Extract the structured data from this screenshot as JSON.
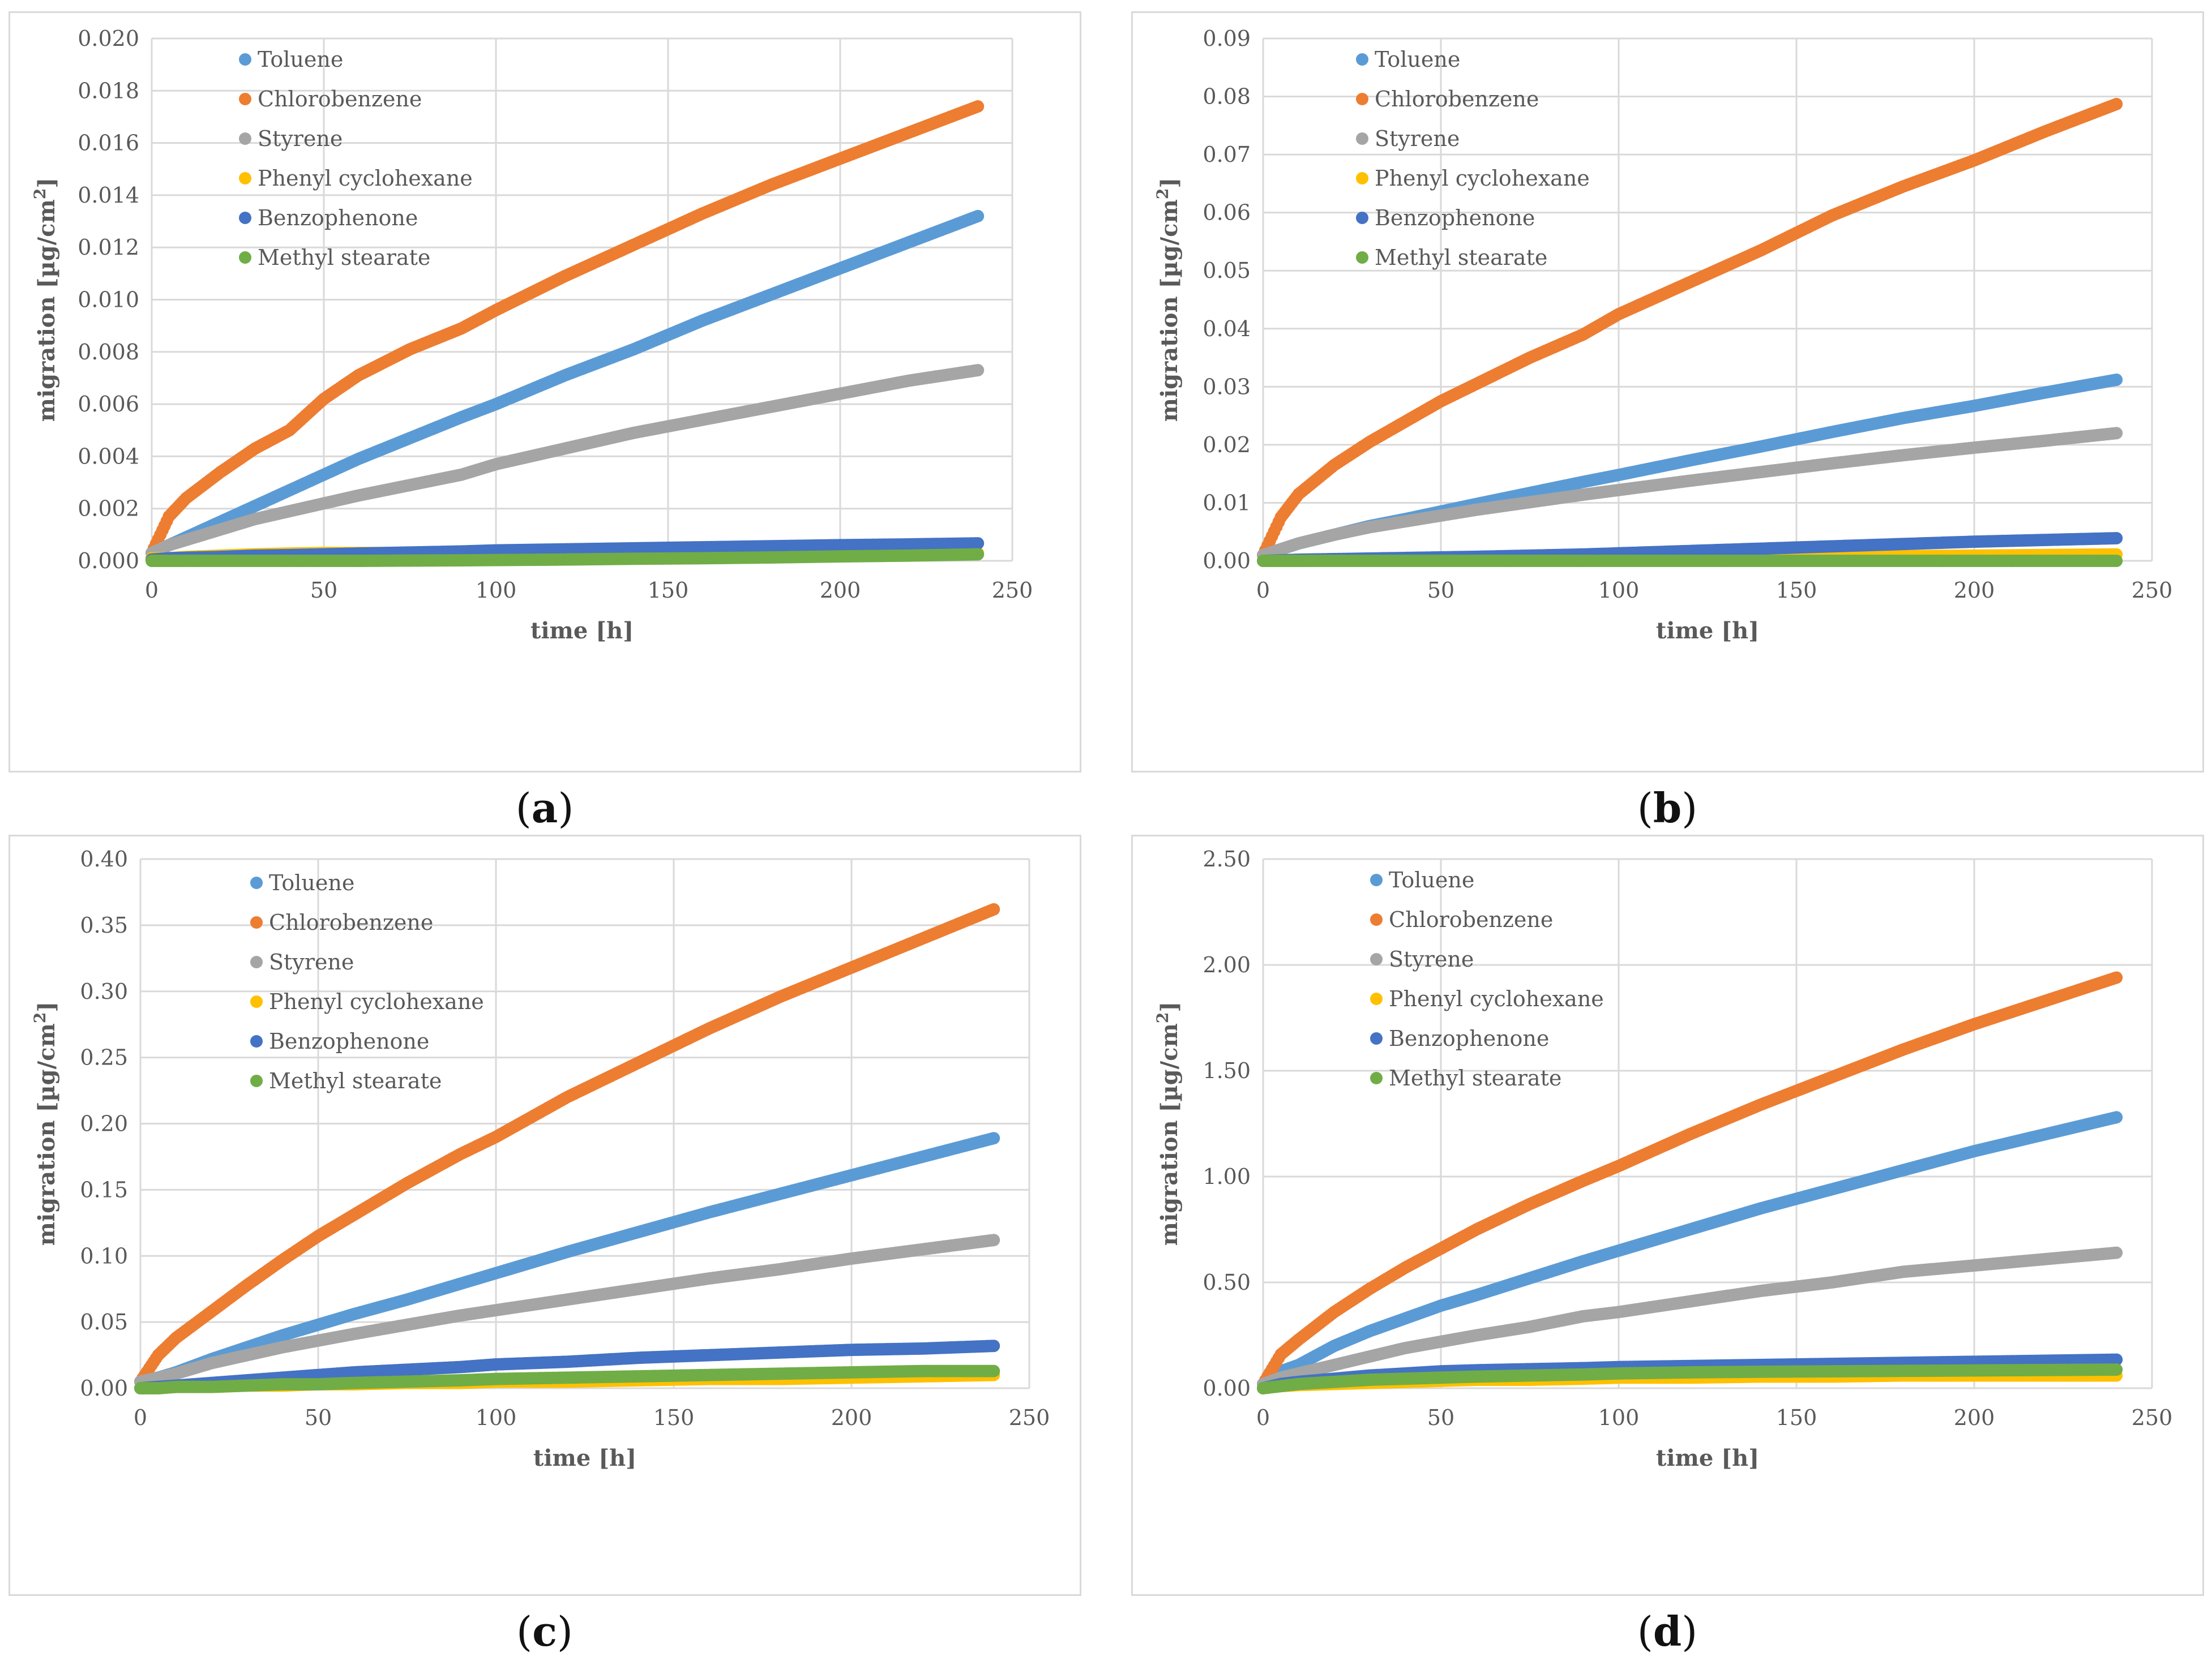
{
  "colors": {
    "toluene": "#5b9bd5",
    "chlorobenzene": "#ed7d31",
    "styrene": "#a5a5a5",
    "phenyl_cyclohexane": "#ffc000",
    "benzophenone": "#4472c4",
    "methyl_stearate": "#70ad47",
    "grid": "#d9d9d9",
    "axis_text": "#595959"
  },
  "chart_data": [
    {
      "id": "a",
      "caption": "a",
      "type": "scatter",
      "xlabel": "time [h]",
      "ylabel_main": "migration [µg/cm",
      "ylabel_sup": "2",
      "ylabel_end": "]",
      "xlim": [
        0,
        250
      ],
      "ylim": [
        0,
        0.02
      ],
      "x_ticks": [
        "0",
        "50",
        "100",
        "150",
        "200",
        "250"
      ],
      "y_ticks": [
        "0.000",
        "0.002",
        "0.004",
        "0.006",
        "0.008",
        "0.010",
        "0.012",
        "0.014",
        "0.016",
        "0.018",
        "0.020"
      ],
      "x": [
        0,
        5,
        10,
        20,
        30,
        40,
        50,
        60,
        75,
        90,
        100,
        120,
        140,
        160,
        180,
        200,
        220,
        240
      ],
      "series": [
        {
          "name": "Toluene",
          "key": "toluene",
          "values": [
            0.0003,
            0.0006,
            0.0009,
            0.0015,
            0.0021,
            0.0027,
            0.0033,
            0.0039,
            0.0047,
            0.0055,
            0.006,
            0.0071,
            0.0081,
            0.0092,
            0.0102,
            0.0112,
            0.0122,
            0.0132
          ]
        },
        {
          "name": "Chlorobenzene",
          "key": "chlorobenzene",
          "values": [
            0.0003,
            0.0017,
            0.0024,
            0.0034,
            0.0043,
            0.005,
            0.0062,
            0.0071,
            0.0081,
            0.0089,
            0.0096,
            0.0109,
            0.0121,
            0.0133,
            0.0144,
            0.0154,
            0.0164,
            0.0174
          ]
        },
        {
          "name": "Styrene",
          "key": "styrene",
          "values": [
            0.0003,
            0.0006,
            0.0008,
            0.0012,
            0.0016,
            0.0019,
            0.0022,
            0.0025,
            0.0029,
            0.0033,
            0.0037,
            0.0043,
            0.0049,
            0.0054,
            0.0059,
            0.0064,
            0.0069,
            0.0073
          ]
        },
        {
          "name": "Phenyl cyclohexane",
          "key": "phenyl_cyclohexane",
          "values": [
            0.0001,
            0.0001,
            0.00015,
            0.0002,
            0.00025,
            0.00028,
            0.0003,
            0.0003,
            0.0003,
            0.0003,
            0.0003,
            0.0003,
            0.0003,
            0.0003,
            0.0003,
            0.0003,
            0.0003,
            0.0003
          ]
        },
        {
          "name": "Benzophenone",
          "key": "benzophenone",
          "values": [
            5e-05,
            0.0001,
            0.00012,
            0.00015,
            0.0002,
            0.00022,
            0.00025,
            0.00028,
            0.00032,
            0.00036,
            0.0004,
            0.00044,
            0.00048,
            0.00052,
            0.00056,
            0.0006,
            0.00063,
            0.00067
          ]
        },
        {
          "name": "Methyl stearate",
          "key": "methyl_stearate",
          "values": [
            0,
            0,
            0,
            0,
            0,
            0,
            0,
            0,
            1e-05,
            2e-05,
            3e-05,
            5e-05,
            8e-05,
            0.0001,
            0.00013,
            0.00017,
            0.0002,
            0.00025
          ]
        }
      ]
    },
    {
      "id": "b",
      "caption": "b",
      "type": "scatter",
      "xlabel": "time [h]",
      "ylabel_main": "migration [µg/cm",
      "ylabel_sup": "2",
      "ylabel_end": "]",
      "xlim": [
        0,
        250
      ],
      "ylim": [
        0,
        0.09
      ],
      "x_ticks": [
        "0",
        "50",
        "100",
        "150",
        "200",
        "250"
      ],
      "y_ticks": [
        "0.00",
        "0.01",
        "0.02",
        "0.03",
        "0.04",
        "0.05",
        "0.06",
        "0.07",
        "0.08",
        "0.09"
      ],
      "x": [
        0,
        5,
        10,
        20,
        30,
        40,
        50,
        60,
        75,
        90,
        100,
        120,
        140,
        160,
        180,
        200,
        220,
        240
      ],
      "series": [
        {
          "name": "Toluene",
          "key": "toluene",
          "values": [
            0.001,
            0.002,
            0.003,
            0.0045,
            0.006,
            0.0072,
            0.0085,
            0.0098,
            0.0117,
            0.0136,
            0.0148,
            0.0173,
            0.0197,
            0.0222,
            0.0246,
            0.0267,
            0.029,
            0.0312
          ]
        },
        {
          "name": "Chlorobenzene",
          "key": "chlorobenzene",
          "values": [
            0.001,
            0.0075,
            0.0115,
            0.0165,
            0.0205,
            0.024,
            0.0275,
            0.0305,
            0.035,
            0.039,
            0.0425,
            0.048,
            0.0535,
            0.0595,
            0.0645,
            0.069,
            0.074,
            0.0787
          ]
        },
        {
          "name": "Styrene",
          "key": "styrene",
          "values": [
            0.001,
            0.002,
            0.003,
            0.0045,
            0.0058,
            0.0068,
            0.0078,
            0.0088,
            0.0101,
            0.0114,
            0.0122,
            0.0138,
            0.0153,
            0.0168,
            0.0182,
            0.0195,
            0.0207,
            0.022
          ]
        },
        {
          "name": "Phenyl cyclohexane",
          "key": "phenyl_cyclohexane",
          "values": [
            0,
            0,
            0,
            0.0001,
            0.0001,
            0.0002,
            0.0002,
            0.0003,
            0.0003,
            0.0004,
            0.0004,
            0.0005,
            0.0006,
            0.0007,
            0.0008,
            0.0009,
            0.001,
            0.0011
          ]
        },
        {
          "name": "Benzophenone",
          "key": "benzophenone",
          "values": [
            0,
            0.0001,
            0.0002,
            0.0003,
            0.0004,
            0.0005,
            0.0006,
            0.0007,
            0.0009,
            0.0011,
            0.0013,
            0.0017,
            0.0021,
            0.0025,
            0.0029,
            0.0033,
            0.0036,
            0.0039
          ]
        },
        {
          "name": "Methyl stearate",
          "key": "methyl_stearate",
          "values": [
            0,
            0,
            0,
            0,
            0,
            0,
            0,
            0,
            0,
            0,
            0,
            0,
            0,
            0,
            0,
            0,
            0,
            0
          ]
        }
      ]
    },
    {
      "id": "c",
      "caption": "c",
      "type": "scatter",
      "xlabel": "time [h]",
      "ylabel_main": "migration [µg/cm",
      "ylabel_sup": "2",
      "ylabel_end": "]",
      "xlim": [
        0,
        250
      ],
      "ylim": [
        0,
        0.4
      ],
      "x_ticks": [
        "0",
        "50",
        "100",
        "150",
        "200",
        "250"
      ],
      "y_ticks": [
        "0.00",
        "0.05",
        "0.10",
        "0.15",
        "0.20",
        "0.25",
        "0.30",
        "0.35",
        "0.40"
      ],
      "x": [
        0,
        5,
        10,
        20,
        30,
        40,
        50,
        60,
        75,
        90,
        100,
        120,
        140,
        160,
        180,
        200,
        220,
        240
      ],
      "series": [
        {
          "name": "Toluene",
          "key": "toluene",
          "values": [
            0.005,
            0.008,
            0.012,
            0.022,
            0.031,
            0.04,
            0.048,
            0.056,
            0.067,
            0.079,
            0.087,
            0.103,
            0.118,
            0.133,
            0.147,
            0.161,
            0.175,
            0.189
          ]
        },
        {
          "name": "Chlorobenzene",
          "key": "chlorobenzene",
          "values": [
            0.005,
            0.025,
            0.038,
            0.058,
            0.078,
            0.097,
            0.115,
            0.131,
            0.155,
            0.177,
            0.19,
            0.22,
            0.246,
            0.272,
            0.296,
            0.318,
            0.34,
            0.362
          ]
        },
        {
          "name": "Styrene",
          "key": "styrene",
          "values": [
            0.005,
            0.008,
            0.011,
            0.019,
            0.025,
            0.031,
            0.036,
            0.041,
            0.048,
            0.055,
            0.059,
            0.067,
            0.075,
            0.083,
            0.09,
            0.098,
            0.105,
            0.112
          ]
        },
        {
          "name": "Phenyl cyclohexane",
          "key": "phenyl_cyclohexane",
          "values": [
            0,
            0,
            0.001,
            0.001,
            0.002,
            0.002,
            0.003,
            0.003,
            0.004,
            0.004,
            0.005,
            0.005,
            0.006,
            0.007,
            0.007,
            0.008,
            0.009,
            0.01
          ]
        },
        {
          "name": "Benzophenone",
          "key": "benzophenone",
          "values": [
            0,
            0.001,
            0.002,
            0.004,
            0.006,
            0.008,
            0.01,
            0.012,
            0.014,
            0.016,
            0.018,
            0.02,
            0.023,
            0.025,
            0.027,
            0.029,
            0.03,
            0.032
          ]
        },
        {
          "name": "Methyl stearate",
          "key": "methyl_stearate",
          "values": [
            0,
            0,
            0.001,
            0.001,
            0.002,
            0.003,
            0.003,
            0.004,
            0.005,
            0.006,
            0.007,
            0.008,
            0.009,
            0.01,
            0.011,
            0.012,
            0.013,
            0.013
          ]
        }
      ]
    },
    {
      "id": "d",
      "caption": "d",
      "type": "scatter",
      "xlabel": "time [h]",
      "ylabel_main": "migration [µg/cm",
      "ylabel_sup": "2",
      "ylabel_end": "]",
      "xlim": [
        0,
        250
      ],
      "ylim": [
        0,
        2.5
      ],
      "x_ticks": [
        "0",
        "50",
        "100",
        "150",
        "200",
        "250"
      ],
      "y_ticks": [
        "0.00",
        "0.50",
        "1.00",
        "1.50",
        "2.00",
        "2.50"
      ],
      "x": [
        0,
        5,
        10,
        20,
        30,
        40,
        50,
        60,
        75,
        90,
        100,
        120,
        140,
        160,
        180,
        200,
        220,
        240
      ],
      "series": [
        {
          "name": "Toluene",
          "key": "toluene",
          "values": [
            0.02,
            0.08,
            0.11,
            0.2,
            0.27,
            0.33,
            0.39,
            0.44,
            0.52,
            0.6,
            0.65,
            0.75,
            0.85,
            0.94,
            1.03,
            1.12,
            1.2,
            1.28
          ]
        },
        {
          "name": "Chlorobenzene",
          "key": "chlorobenzene",
          "values": [
            0.02,
            0.16,
            0.23,
            0.36,
            0.47,
            0.57,
            0.66,
            0.75,
            0.87,
            0.98,
            1.05,
            1.2,
            1.34,
            1.47,
            1.6,
            1.72,
            1.83,
            1.94
          ]
        },
        {
          "name": "Styrene",
          "key": "styrene",
          "values": [
            0.02,
            0.05,
            0.07,
            0.11,
            0.15,
            0.19,
            0.22,
            0.25,
            0.29,
            0.34,
            0.36,
            0.41,
            0.46,
            0.5,
            0.55,
            0.58,
            0.61,
            0.64
          ]
        },
        {
          "name": "Phenyl cyclohexane",
          "key": "phenyl_cyclohexane",
          "values": [
            0,
            0.01,
            0.015,
            0.02,
            0.025,
            0.03,
            0.035,
            0.04,
            0.04,
            0.045,
            0.05,
            0.05,
            0.055,
            0.055,
            0.06,
            0.06,
            0.06,
            0.06
          ]
        },
        {
          "name": "Benzophenone",
          "key": "benzophenone",
          "values": [
            0,
            0.02,
            0.03,
            0.045,
            0.06,
            0.07,
            0.08,
            0.085,
            0.09,
            0.095,
            0.1,
            0.105,
            0.11,
            0.115,
            0.12,
            0.125,
            0.13,
            0.135
          ]
        },
        {
          "name": "Methyl stearate",
          "key": "methyl_stearate",
          "values": [
            0,
            0.01,
            0.02,
            0.03,
            0.04,
            0.045,
            0.05,
            0.055,
            0.06,
            0.065,
            0.07,
            0.075,
            0.078,
            0.08,
            0.082,
            0.084,
            0.086,
            0.088
          ]
        }
      ]
    }
  ]
}
